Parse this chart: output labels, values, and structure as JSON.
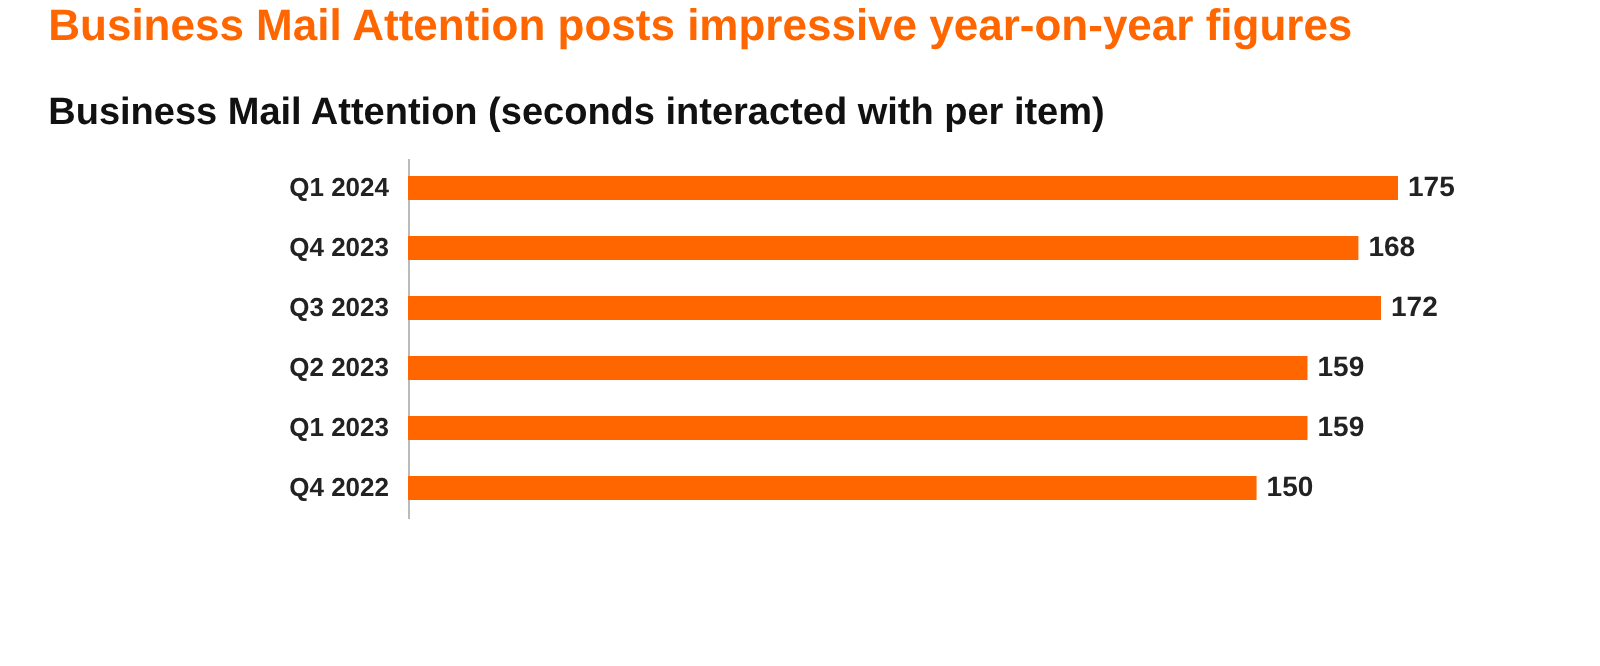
{
  "chart_data": {
    "type": "bar",
    "orientation": "horizontal",
    "title": "Business Mail Attention posts impressive year-on-year figures",
    "subtitle": "Business Mail Attention (seconds interacted with per item)",
    "categories": [
      "Q1 2024",
      "Q4 2023",
      "Q3 2023",
      "Q2 2023",
      "Q1 2023",
      "Q4 2022"
    ],
    "values": [
      175,
      168,
      172,
      159,
      159,
      150
    ],
    "color": "#ff6600",
    "data_labels": true
  }
}
